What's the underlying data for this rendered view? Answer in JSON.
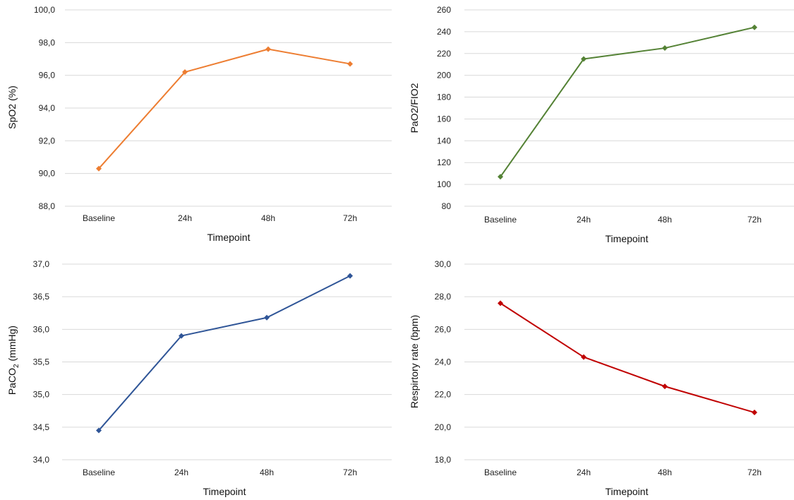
{
  "chart_data": [
    {
      "type": "line",
      "categories": [
        "Baseline",
        "24h",
        "48h",
        "72h"
      ],
      "values": [
        90.3,
        96.2,
        97.6,
        96.7
      ],
      "xlabel": "Timepoint",
      "ylabel": "SpO2 (%)",
      "ylim": [
        88.0,
        100.0
      ],
      "yticks": [
        "88,0",
        "90,0",
        "92,0",
        "94,0",
        "96,0",
        "98,0",
        "100,0"
      ],
      "ytick_values": [
        88,
        90,
        92,
        94,
        96,
        98,
        100
      ],
      "color": "#ed7d31",
      "grid": true
    },
    {
      "type": "line",
      "categories": [
        "Baseline",
        "24h",
        "48h",
        "72h"
      ],
      "values": [
        107,
        215,
        225,
        244
      ],
      "xlabel": "Timepoint",
      "ylabel": "PaO2/FIO2",
      "ylim": [
        80,
        260
      ],
      "yticks": [
        "80",
        "100",
        "120",
        "140",
        "160",
        "180",
        "200",
        "220",
        "240",
        "260"
      ],
      "ytick_values": [
        80,
        100,
        120,
        140,
        160,
        180,
        200,
        220,
        240,
        260
      ],
      "color": "#548235",
      "grid": true
    },
    {
      "type": "line",
      "categories": [
        "Baseline",
        "24h",
        "48h",
        "72h"
      ],
      "values": [
        34.45,
        35.9,
        36.18,
        36.82
      ],
      "xlabel": "Timepoint",
      "ylabel": "PaCO2 (mmHg)",
      "ylabel_main": "PaCO",
      "ylabel_sub": "2",
      "ylabel_tail": " (mmHg)",
      "ylim": [
        34.0,
        37.0
      ],
      "yticks": [
        "34,0",
        "34,5",
        "35,0",
        "35,5",
        "36,0",
        "36,5",
        "37,0"
      ],
      "ytick_values": [
        34.0,
        34.5,
        35.0,
        35.5,
        36.0,
        36.5,
        37.0
      ],
      "color": "#2f5597",
      "grid": true
    },
    {
      "type": "line",
      "categories": [
        "Baseline",
        "24h",
        "48h",
        "72h"
      ],
      "values": [
        27.6,
        24.3,
        22.5,
        20.9
      ],
      "xlabel": "Timepoint",
      "ylabel": "Respirtory rate (bpm)",
      "ylim": [
        18.0,
        30.0
      ],
      "yticks": [
        "18,0",
        "20,0",
        "22,0",
        "24,0",
        "26,0",
        "28,0",
        "30,0"
      ],
      "ytick_values": [
        18,
        20,
        22,
        24,
        26,
        28,
        30
      ],
      "color": "#c00000",
      "grid": true
    }
  ]
}
